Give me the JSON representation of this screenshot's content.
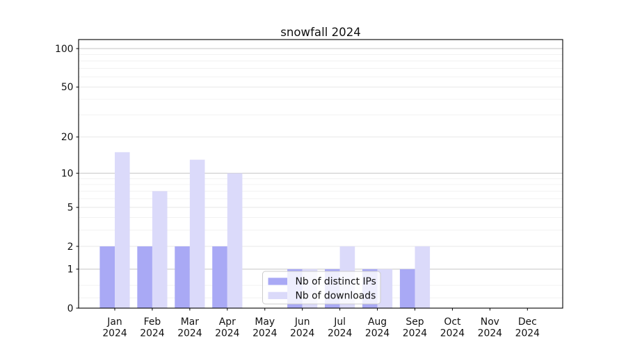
{
  "chart_data": {
    "type": "bar",
    "title": "snowfall 2024",
    "categories": [
      "Jan 2024",
      "Feb 2024",
      "Mar 2024",
      "Apr 2024",
      "May 2024",
      "Jun 2024",
      "Jul 2024",
      "Aug 2024",
      "Sep 2024",
      "Oct 2024",
      "Nov 2024",
      "Dec 2024"
    ],
    "series": [
      {
        "name": "Nb of distinct IPs",
        "color": "#a9a9f5",
        "values": [
          2,
          2,
          2,
          2,
          0,
          1,
          1,
          1,
          1,
          0,
          0,
          0
        ]
      },
      {
        "name": "Nb of downloads",
        "color": "#dbdafa",
        "values": [
          15,
          7,
          13,
          10,
          0,
          1,
          2,
          1,
          2,
          0,
          0,
          0
        ]
      }
    ],
    "y_axis": {
      "scale": "log10(1+v)",
      "ticks": [
        0,
        1,
        2,
        5,
        10,
        20,
        50,
        100
      ],
      "major_grid_values": [
        1,
        10,
        100
      ],
      "mid_grid_values": [
        2,
        5,
        20,
        50
      ],
      "minor_gridlines": [
        0.2,
        0.5,
        3,
        4,
        6,
        7,
        8,
        9,
        30,
        40,
        60,
        70,
        80,
        90
      ],
      "top_value": 117
    },
    "xlabel": "",
    "ylabel": "",
    "legend": {
      "position": "lower center"
    },
    "grid": true,
    "colors": {
      "background": "#ffffff",
      "axes_frame": "#000000",
      "grid_major": "#c5c5c5",
      "grid_mid": "#e7e7e7",
      "grid_minor": "#f0f0f0",
      "text": "#111111",
      "legend_border": "#cccccc",
      "legend_fill": "#ffffff"
    }
  }
}
